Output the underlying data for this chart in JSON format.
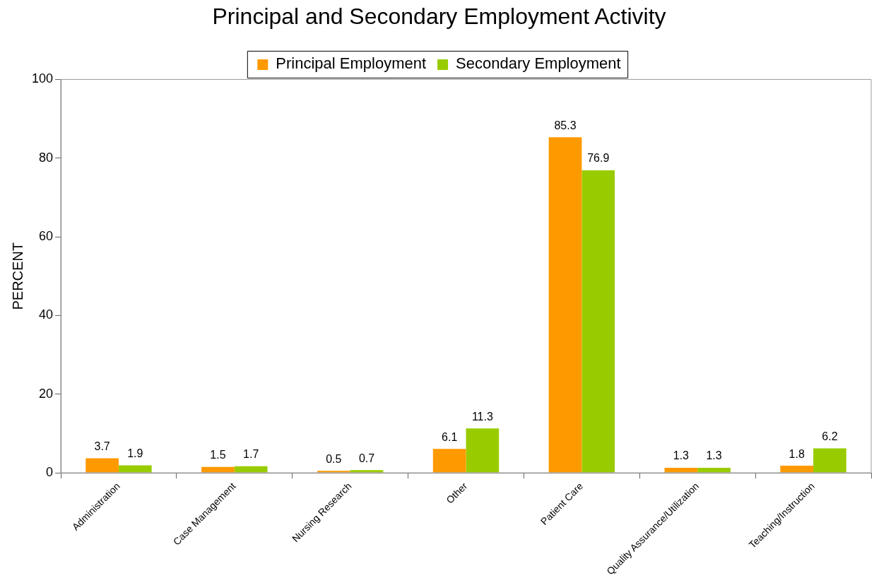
{
  "chart_data": {
    "type": "bar",
    "title": "Principal and Secondary Employment Activity",
    "ylabel": "PERCENT",
    "categories": [
      "Administration",
      "Case Management",
      "Nursing Research",
      "Other",
      "Patient Care",
      "Quality Assurance/Utilization",
      "Teaching/Instruction"
    ],
    "series": [
      {
        "name": "Principal Employment",
        "color": "#ff9900",
        "values": [
          3.7,
          1.5,
          0.5,
          6.1,
          85.3,
          1.3,
          1.8
        ]
      },
      {
        "name": "Secondary Employment",
        "color": "#99cc00",
        "values": [
          1.9,
          1.7,
          0.7,
          11.3,
          76.9,
          1.3,
          6.2
        ]
      }
    ],
    "ylim": [
      0,
      100
    ],
    "yticks": [
      0,
      20,
      40,
      60,
      80,
      100
    ],
    "grid": false,
    "legend": "top",
    "data_labels": true
  }
}
